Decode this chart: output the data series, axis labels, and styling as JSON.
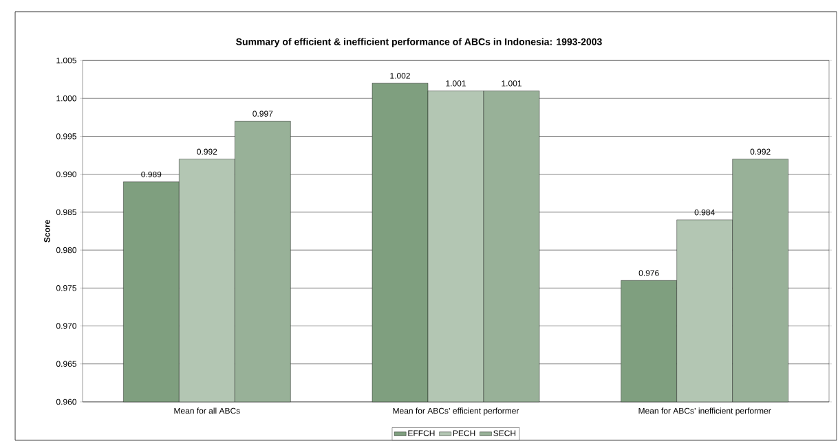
{
  "chart_data": {
    "type": "bar",
    "title": "Summary of efficient & inefficient performance of ABCs in Indonesia: 1993-2003",
    "ylabel": "Score",
    "categories": [
      "Mean for all ABCs",
      "Mean for ABCs’ efficient performer",
      "Mean for ABCs’ inefficient performer"
    ],
    "series": [
      {
        "name": "EFFCH",
        "color": "#7f9f7f",
        "values": [
          0.989,
          1.002,
          0.976
        ]
      },
      {
        "name": "PECH",
        "color": "#b3c6b3",
        "values": [
          0.992,
          1.001,
          0.984
        ]
      },
      {
        "name": "SECH",
        "color": "#98b198",
        "values": [
          0.997,
          1.001,
          0.992
        ]
      }
    ],
    "ylim": [
      0.96,
      1.005
    ],
    "yticks": [
      {
        "value": 0.96,
        "label": "0.960"
      },
      {
        "value": 0.965,
        "label": "0.965"
      },
      {
        "value": 0.97,
        "label": "0.970"
      },
      {
        "value": 0.975,
        "label": "0.975"
      },
      {
        "value": 0.98,
        "label": "0.980"
      },
      {
        "value": 0.985,
        "label": "0.985"
      },
      {
        "value": 0.99,
        "label": "0.990"
      },
      {
        "value": 0.995,
        "label": "0.995"
      },
      {
        "value": 1.0,
        "label": "1.000"
      },
      {
        "value": 1.005,
        "label": "1.005"
      }
    ],
    "grid": "y",
    "legend": "bottom",
    "data_labels": true
  }
}
